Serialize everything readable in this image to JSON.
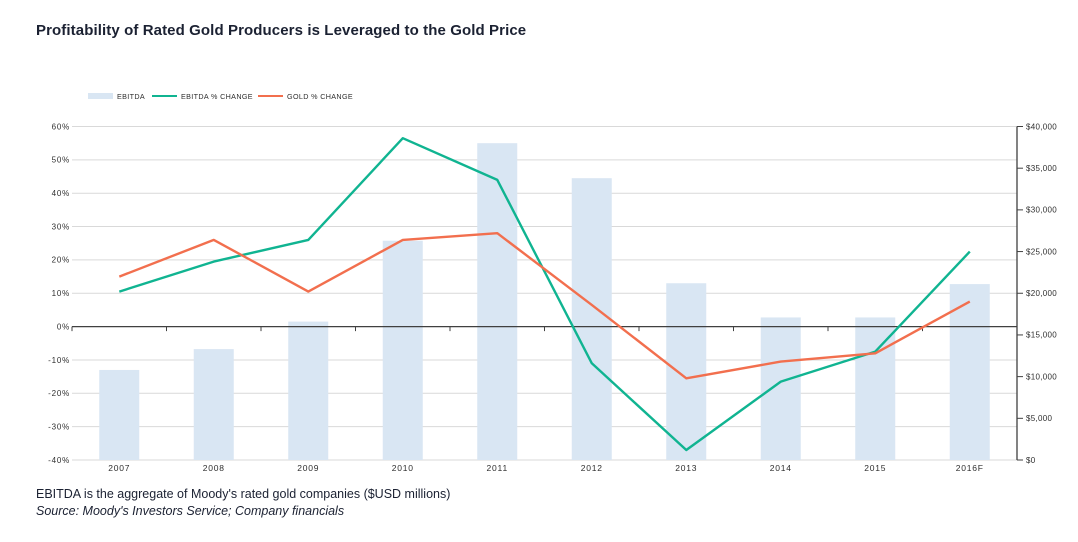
{
  "title": "Profitability of Rated Gold Producers is Leveraged to the Gold Price",
  "footnote": "EBITDA is the aggregate of Moody's rated gold companies ($USD millions)",
  "source": "Source: Moody's Investors Service; Company financials",
  "colors": {
    "bar": "#d9e6f3",
    "ebitda_change_line": "#10b491",
    "gold_change_line": "#f26f4e",
    "grid": "#d9d9d9",
    "axis": "#404040",
    "text": "#1b2132",
    "tick_text": "#2e2e2e"
  },
  "chart_data": {
    "type": "combo",
    "categories": [
      "2007",
      "2008",
      "2009",
      "2010",
      "2011",
      "2012",
      "2013",
      "2014",
      "2015",
      "2016F"
    ],
    "series": [
      {
        "name": "EBITDA",
        "type": "bar",
        "axis": "right",
        "color": "#d9e6f3",
        "values": [
          10800,
          13300,
          16600,
          26300,
          38000,
          33800,
          21200,
          17100,
          17100,
          21100
        ]
      },
      {
        "name": "EBITDA % CHANGE",
        "type": "line",
        "axis": "left",
        "color": "#10b491",
        "values": [
          10.5,
          19.5,
          26,
          56.5,
          44,
          -11,
          -37,
          -16.5,
          -7.5,
          22.5
        ]
      },
      {
        "name": "GOLD % CHANGE",
        "type": "line",
        "axis": "left",
        "color": "#f26f4e",
        "values": [
          15,
          26,
          10.5,
          26,
          28,
          6.5,
          -15.5,
          -10.5,
          -8,
          7.5
        ]
      }
    ],
    "left_axis": {
      "min": -40,
      "max": 60,
      "step": 10,
      "tick_labels": [
        "60%",
        "50%",
        "40%",
        "30%",
        "20%",
        "10%",
        "0%",
        "-10%",
        "-20%",
        "-30%",
        "-40%"
      ]
    },
    "right_axis": {
      "min": 0,
      "max": 40000,
      "step": 5000,
      "tick_labels": [
        "$40,000",
        "$35,000",
        "$30,000",
        "$25,000",
        "$20,000",
        "$15,000",
        "$10,000",
        "$5,000",
        "$0"
      ]
    },
    "grid": true,
    "legend_position": "top-left"
  }
}
